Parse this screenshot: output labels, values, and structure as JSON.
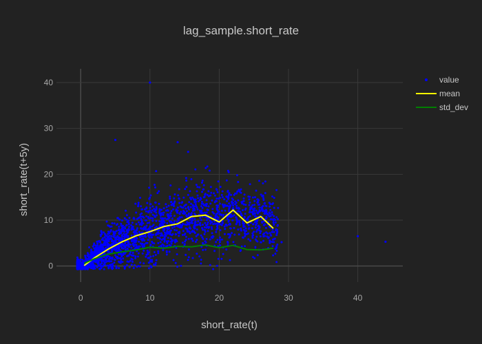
{
  "chart_data": {
    "type": "scatter",
    "title": "lag_sample.short_rate",
    "xlabel": "short_rate(t)",
    "ylabel": "short_rate(t+5y)",
    "xlim": [
      -3.5,
      46.5
    ],
    "ylim": [
      -3.5,
      43
    ],
    "x_ticks": [
      0,
      10,
      20,
      30,
      40
    ],
    "y_ticks": [
      0,
      10,
      20,
      30,
      40
    ],
    "grid": true,
    "legend_position": "top-right",
    "series": [
      {
        "name": "value",
        "kind": "markers",
        "color": "#0000ff",
        "note_points": "dense cloud of scatter points; representative outliers listed",
        "points": [
          [
            10,
            40
          ],
          [
            5,
            27.5
          ],
          [
            14,
            27
          ],
          [
            40,
            6.5
          ],
          [
            44,
            5.3
          ],
          [
            29,
            5.2
          ]
        ]
      },
      {
        "name": "mean",
        "kind": "line",
        "color": "#ffff00",
        "x": [
          0.5,
          2,
          4,
          6,
          8,
          10,
          12,
          14,
          16,
          18,
          20,
          22,
          24,
          26,
          27.8
        ],
        "y": [
          0.1,
          1.8,
          3.7,
          5.3,
          6.6,
          7.5,
          8.6,
          9.2,
          10.8,
          11.1,
          9.6,
          12.2,
          9.4,
          10.8,
          8.2
        ]
      },
      {
        "name": "std_dev",
        "kind": "line",
        "color": "#008000",
        "x": [
          0.5,
          2,
          4,
          6,
          8,
          10,
          12,
          14,
          16,
          18,
          20,
          22,
          24,
          26,
          27.8
        ],
        "y": [
          0.6,
          1.6,
          2.6,
          3.1,
          3.5,
          4.1,
          3.9,
          4.3,
          4.2,
          4.6,
          4.0,
          4.5,
          3.6,
          3.5,
          3.9
        ]
      }
    ]
  }
}
